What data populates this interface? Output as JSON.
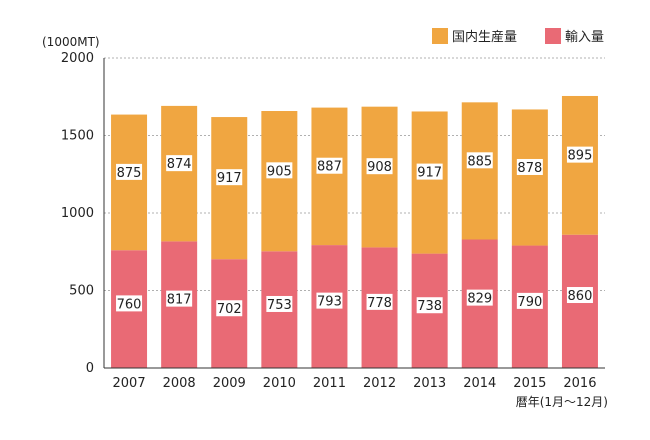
{
  "chart_data": {
    "type": "bar",
    "stacked": true,
    "unit_label": "(1000MT)",
    "xlabel": "暦年(1月〜12月)",
    "categories": [
      "2007",
      "2008",
      "2009",
      "2010",
      "2011",
      "2012",
      "2013",
      "2014",
      "2015",
      "2016"
    ],
    "series": [
      {
        "name": "輸入量",
        "color": "#e96a75",
        "values": [
          760,
          817,
          702,
          753,
          793,
          778,
          738,
          829,
          790,
          860
        ]
      },
      {
        "name": "国内生産量",
        "color": "#f0a641",
        "values": [
          875,
          874,
          917,
          905,
          887,
          908,
          917,
          885,
          878,
          895
        ]
      }
    ],
    "legend": [
      {
        "name": "国内生産量",
        "color": "#f0a641"
      },
      {
        "name": "輸入量",
        "color": "#e96a75"
      }
    ],
    "ylim": [
      0,
      2000
    ],
    "yticks": [
      "0",
      "500",
      "1000",
      "1500",
      "2000"
    ],
    "grid": "horizontal dotted",
    "legend_position": "top-right"
  }
}
